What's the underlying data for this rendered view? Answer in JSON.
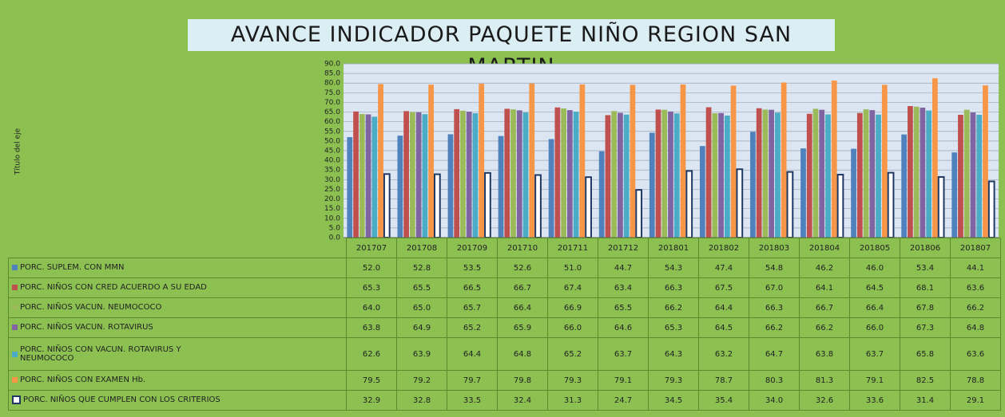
{
  "chart_data": {
    "type": "bar",
    "title": "AVANCE INDICADOR PAQUETE NIÑO REGION SAN MARTIN",
    "y_axis_label": "Título del eje",
    "categories": [
      "201707",
      "201708",
      "201709",
      "201710",
      "201711",
      "201712",
      "201801",
      "201802",
      "201803",
      "201804",
      "201805",
      "201806",
      "201807"
    ],
    "series": [
      {
        "name": "PORC. SUPLEM. CON MMN",
        "color": "#4f81bd",
        "values": [
          52.0,
          52.8,
          53.5,
          52.6,
          51.0,
          44.7,
          54.3,
          47.4,
          54.8,
          46.2,
          46.0,
          53.4,
          44.1
        ],
        "value_labels": [
          "52.0",
          "52.8",
          "53.5",
          "52.6",
          "51.0",
          "44.7",
          "54.3",
          "47.4",
          "54.8",
          "46.2",
          "46.0",
          "53.4",
          "44.1"
        ]
      },
      {
        "name": "PORC. NIÑOS CON CRED ACUERDO A SU EDAD",
        "color": "#c0504d",
        "values": [
          65.3,
          65.5,
          66.5,
          66.7,
          67.4,
          63.4,
          66.3,
          67.5,
          67.0,
          64.1,
          64.5,
          68.1,
          63.6
        ],
        "value_labels": [
          "65.3",
          "65.5",
          "66.5",
          "66.7",
          "67.4",
          "63.4",
          "66.3",
          "67.5",
          "67.0",
          "64.1",
          "64.5",
          "68.1",
          "63.6"
        ]
      },
      {
        "name": "PORC. NIÑOS VACUN. NEUMOCOCO",
        "color": "#9bbb59",
        "values": [
          64.0,
          65.0,
          65.7,
          66.4,
          66.9,
          65.5,
          66.2,
          64.4,
          66.3,
          66.7,
          66.4,
          67.8,
          66.2
        ],
        "value_labels": [
          "64.0",
          "65.0",
          "65.7",
          "66.4",
          "66.9",
          "65.5",
          "66.2",
          "64.4",
          "66.3",
          "66.7",
          "66.4",
          "67.8",
          "66.2"
        ]
      },
      {
        "name": "PORC. NIÑOS VACUN. ROTAVIRUS",
        "color": "#8064a2",
        "values": [
          63.8,
          64.9,
          65.2,
          65.9,
          66.0,
          64.6,
          65.3,
          64.5,
          66.2,
          66.2,
          66.0,
          67.3,
          64.8
        ],
        "value_labels": [
          "63.8",
          "64.9",
          "65.2",
          "65.9",
          "66.0",
          "64.6",
          "65.3",
          "64.5",
          "66.2",
          "66.2",
          "66.0",
          "67.3",
          "64.8"
        ]
      },
      {
        "name": "PORC. NIÑOS CON VACUN. ROTAVIRUS Y NEUMOCOCO",
        "color": "#4bacc6",
        "values": [
          62.6,
          63.9,
          64.4,
          64.8,
          65.2,
          63.7,
          64.3,
          63.2,
          64.7,
          63.8,
          63.7,
          65.8,
          63.6
        ],
        "value_labels": [
          "62.6",
          "63.9",
          "64.4",
          "64.8",
          "65.2",
          "63.7",
          "64.3",
          "63.2",
          "64.7",
          "63.8",
          "63.7",
          "65.8",
          "63.6"
        ]
      },
      {
        "name": "PORC. NIÑOS CON EXAMEN Hb.",
        "color": "#f79646",
        "values": [
          79.5,
          79.2,
          79.7,
          79.8,
          79.3,
          79.1,
          79.3,
          78.7,
          80.3,
          81.3,
          79.1,
          82.5,
          78.8
        ],
        "value_labels": [
          "79.5",
          "79.2",
          "79.7",
          "79.8",
          "79.3",
          "79.1",
          "79.3",
          "78.7",
          "80.3",
          "81.3",
          "79.1",
          "82.5",
          "78.8"
        ]
      },
      {
        "name": "PORC. NIÑOS QUE CUMPLEN CON LOS CRITERIOS",
        "color": "#1f3864",
        "values": [
          32.9,
          32.8,
          33.5,
          32.4,
          31.3,
          24.7,
          34.5,
          35.4,
          34.0,
          32.6,
          33.6,
          31.4,
          29.1
        ],
        "value_labels": [
          "32.9",
          "32.8",
          "33.5",
          "32.4",
          "31.3",
          "24.7",
          "34.5",
          "35.4",
          "34.0",
          "32.6",
          "33.6",
          "31.4",
          "29.1"
        ]
      }
    ],
    "ylim": [
      0,
      90
    ],
    "yticks": [
      {
        "value": 0,
        "label": "0.0"
      },
      {
        "value": 5,
        "label": "5.0"
      },
      {
        "value": 10,
        "label": "10.0"
      },
      {
        "value": 15,
        "label": "15.0"
      },
      {
        "value": 20,
        "label": "20.0"
      },
      {
        "value": 25,
        "label": "25.0"
      },
      {
        "value": 30,
        "label": "30.0"
      },
      {
        "value": 35,
        "label": "35.0"
      },
      {
        "value": 40,
        "label": "40.0"
      },
      {
        "value": 45,
        "label": "45.0"
      },
      {
        "value": 50,
        "label": "50.0"
      },
      {
        "value": 55,
        "label": "55.0"
      },
      {
        "value": 60,
        "label": "60.0"
      },
      {
        "value": 65,
        "label": "65.0"
      },
      {
        "value": 70,
        "label": "70.0"
      },
      {
        "value": 75,
        "label": "75.0"
      },
      {
        "value": 80,
        "label": "80.0"
      },
      {
        "value": 85,
        "label": "85.0"
      },
      {
        "value": 90,
        "label": "90.0"
      }
    ],
    "grid": true
  }
}
